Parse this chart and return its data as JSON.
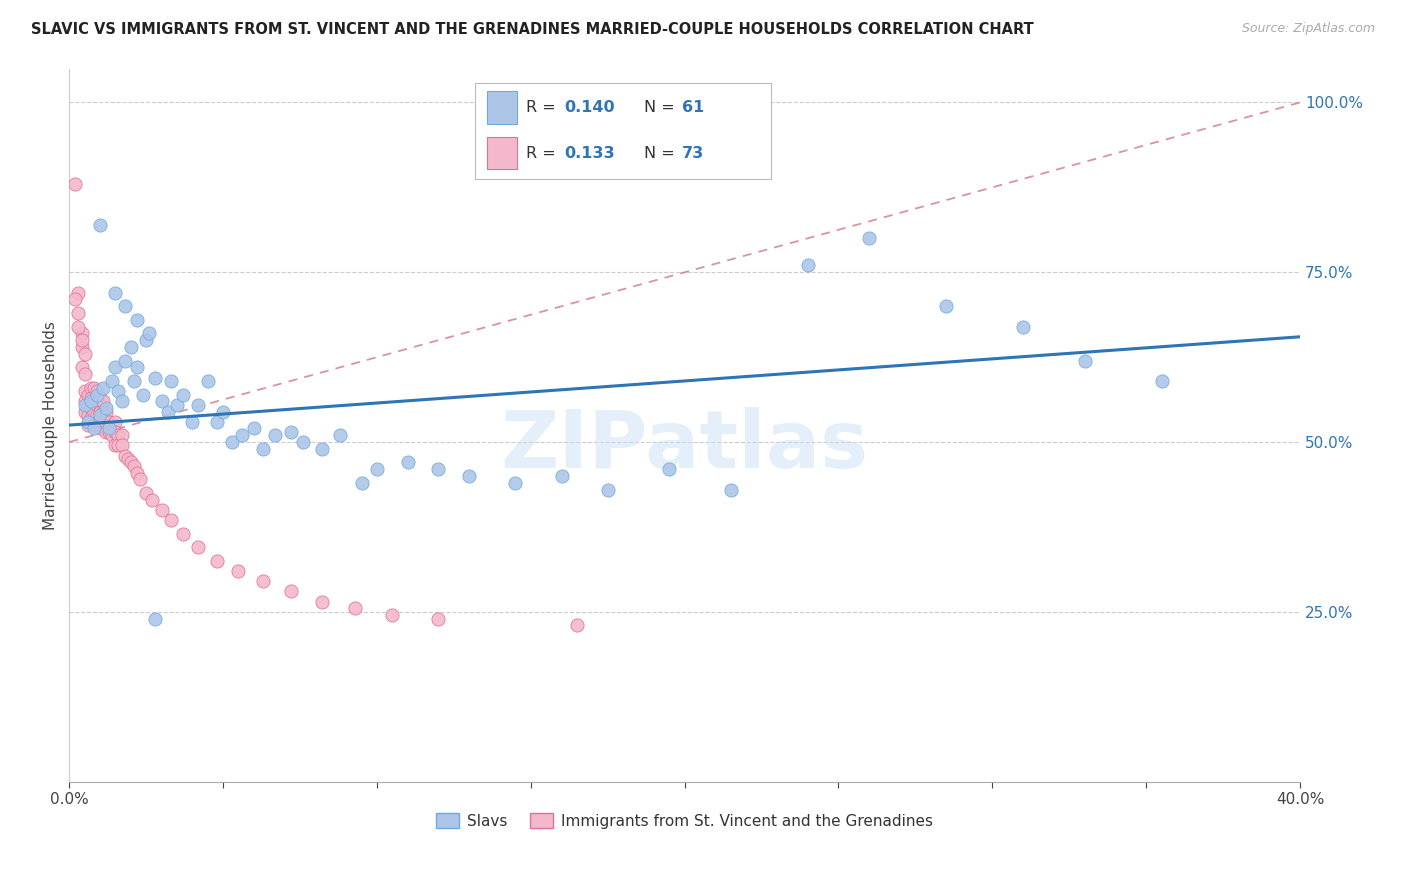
{
  "title": "SLAVIC VS IMMIGRANTS FROM ST. VINCENT AND THE GRENADINES MARRIED-COUPLE HOUSEHOLDS CORRELATION CHART",
  "source": "Source: ZipAtlas.com",
  "ylabel": "Married-couple Households",
  "xlim": [
    0.0,
    0.4
  ],
  "ylim": [
    0.0,
    1.05
  ],
  "yticks_right": [
    0.25,
    0.5,
    0.75,
    1.0
  ],
  "ytick_labels_right": [
    "25.0%",
    "50.0%",
    "75.0%",
    "100.0%"
  ],
  "blue_color": "#adc6e8",
  "blue_edge_color": "#6fa8dc",
  "pink_color": "#f4b8cc",
  "pink_edge_color": "#e07090",
  "trend_blue_color": "#2e75b6",
  "trend_pink_color": "#cc7080",
  "watermark": "ZIPatlas",
  "legend_label1": "Slavs",
  "legend_label2": "Immigrants from St. Vincent and the Grenadines",
  "background_color": "#ffffff",
  "grid_color": "#cccccc",
  "blue_trend_x0": 0.0,
  "blue_trend_y0": 0.525,
  "blue_trend_x1": 0.4,
  "blue_trend_y1": 0.655,
  "pink_trend_x0": 0.0,
  "pink_trend_y0": 0.5,
  "pink_trend_x1": 0.4,
  "pink_trend_y1": 1.0,
  "blue_scatter_x": [
    0.005,
    0.006,
    0.007,
    0.008,
    0.009,
    0.01,
    0.011,
    0.012,
    0.013,
    0.014,
    0.015,
    0.016,
    0.017,
    0.018,
    0.02,
    0.021,
    0.022,
    0.024,
    0.025,
    0.026,
    0.028,
    0.03,
    0.032,
    0.033,
    0.035,
    0.037,
    0.04,
    0.042,
    0.045,
    0.048,
    0.05,
    0.053,
    0.056,
    0.06,
    0.063,
    0.067,
    0.072,
    0.076,
    0.082,
    0.088,
    0.095,
    0.1,
    0.11,
    0.12,
    0.13,
    0.145,
    0.16,
    0.175,
    0.195,
    0.215,
    0.24,
    0.26,
    0.285,
    0.31,
    0.33,
    0.355,
    0.01,
    0.015,
    0.018,
    0.022,
    0.028
  ],
  "blue_scatter_y": [
    0.555,
    0.53,
    0.56,
    0.52,
    0.57,
    0.54,
    0.58,
    0.55,
    0.52,
    0.59,
    0.61,
    0.575,
    0.56,
    0.62,
    0.64,
    0.59,
    0.61,
    0.57,
    0.65,
    0.66,
    0.595,
    0.56,
    0.545,
    0.59,
    0.555,
    0.57,
    0.53,
    0.555,
    0.59,
    0.53,
    0.545,
    0.5,
    0.51,
    0.52,
    0.49,
    0.51,
    0.515,
    0.5,
    0.49,
    0.51,
    0.44,
    0.46,
    0.47,
    0.46,
    0.45,
    0.44,
    0.45,
    0.43,
    0.46,
    0.43,
    0.76,
    0.8,
    0.7,
    0.67,
    0.62,
    0.59,
    0.82,
    0.72,
    0.7,
    0.68,
    0.24
  ],
  "pink_scatter_x": [
    0.002,
    0.003,
    0.003,
    0.004,
    0.004,
    0.004,
    0.005,
    0.005,
    0.005,
    0.005,
    0.005,
    0.006,
    0.006,
    0.006,
    0.006,
    0.007,
    0.007,
    0.007,
    0.007,
    0.008,
    0.008,
    0.008,
    0.008,
    0.009,
    0.009,
    0.009,
    0.009,
    0.01,
    0.01,
    0.01,
    0.01,
    0.01,
    0.011,
    0.011,
    0.011,
    0.012,
    0.012,
    0.012,
    0.013,
    0.013,
    0.014,
    0.014,
    0.015,
    0.015,
    0.015,
    0.016,
    0.016,
    0.017,
    0.017,
    0.018,
    0.019,
    0.02,
    0.021,
    0.022,
    0.023,
    0.025,
    0.027,
    0.03,
    0.033,
    0.037,
    0.042,
    0.048,
    0.055,
    0.063,
    0.072,
    0.082,
    0.093,
    0.105,
    0.12,
    0.002,
    0.003,
    0.004,
    0.165
  ],
  "pink_scatter_y": [
    0.88,
    0.72,
    0.69,
    0.66,
    0.64,
    0.61,
    0.63,
    0.6,
    0.575,
    0.56,
    0.545,
    0.57,
    0.555,
    0.54,
    0.525,
    0.58,
    0.565,
    0.55,
    0.535,
    0.58,
    0.56,
    0.545,
    0.525,
    0.575,
    0.555,
    0.54,
    0.525,
    0.565,
    0.555,
    0.545,
    0.535,
    0.52,
    0.56,
    0.545,
    0.53,
    0.545,
    0.53,
    0.515,
    0.53,
    0.515,
    0.525,
    0.51,
    0.53,
    0.515,
    0.495,
    0.51,
    0.495,
    0.51,
    0.495,
    0.48,
    0.475,
    0.47,
    0.465,
    0.455,
    0.445,
    0.425,
    0.415,
    0.4,
    0.385,
    0.365,
    0.345,
    0.325,
    0.31,
    0.295,
    0.28,
    0.265,
    0.255,
    0.245,
    0.24,
    0.71,
    0.67,
    0.65,
    0.23
  ]
}
